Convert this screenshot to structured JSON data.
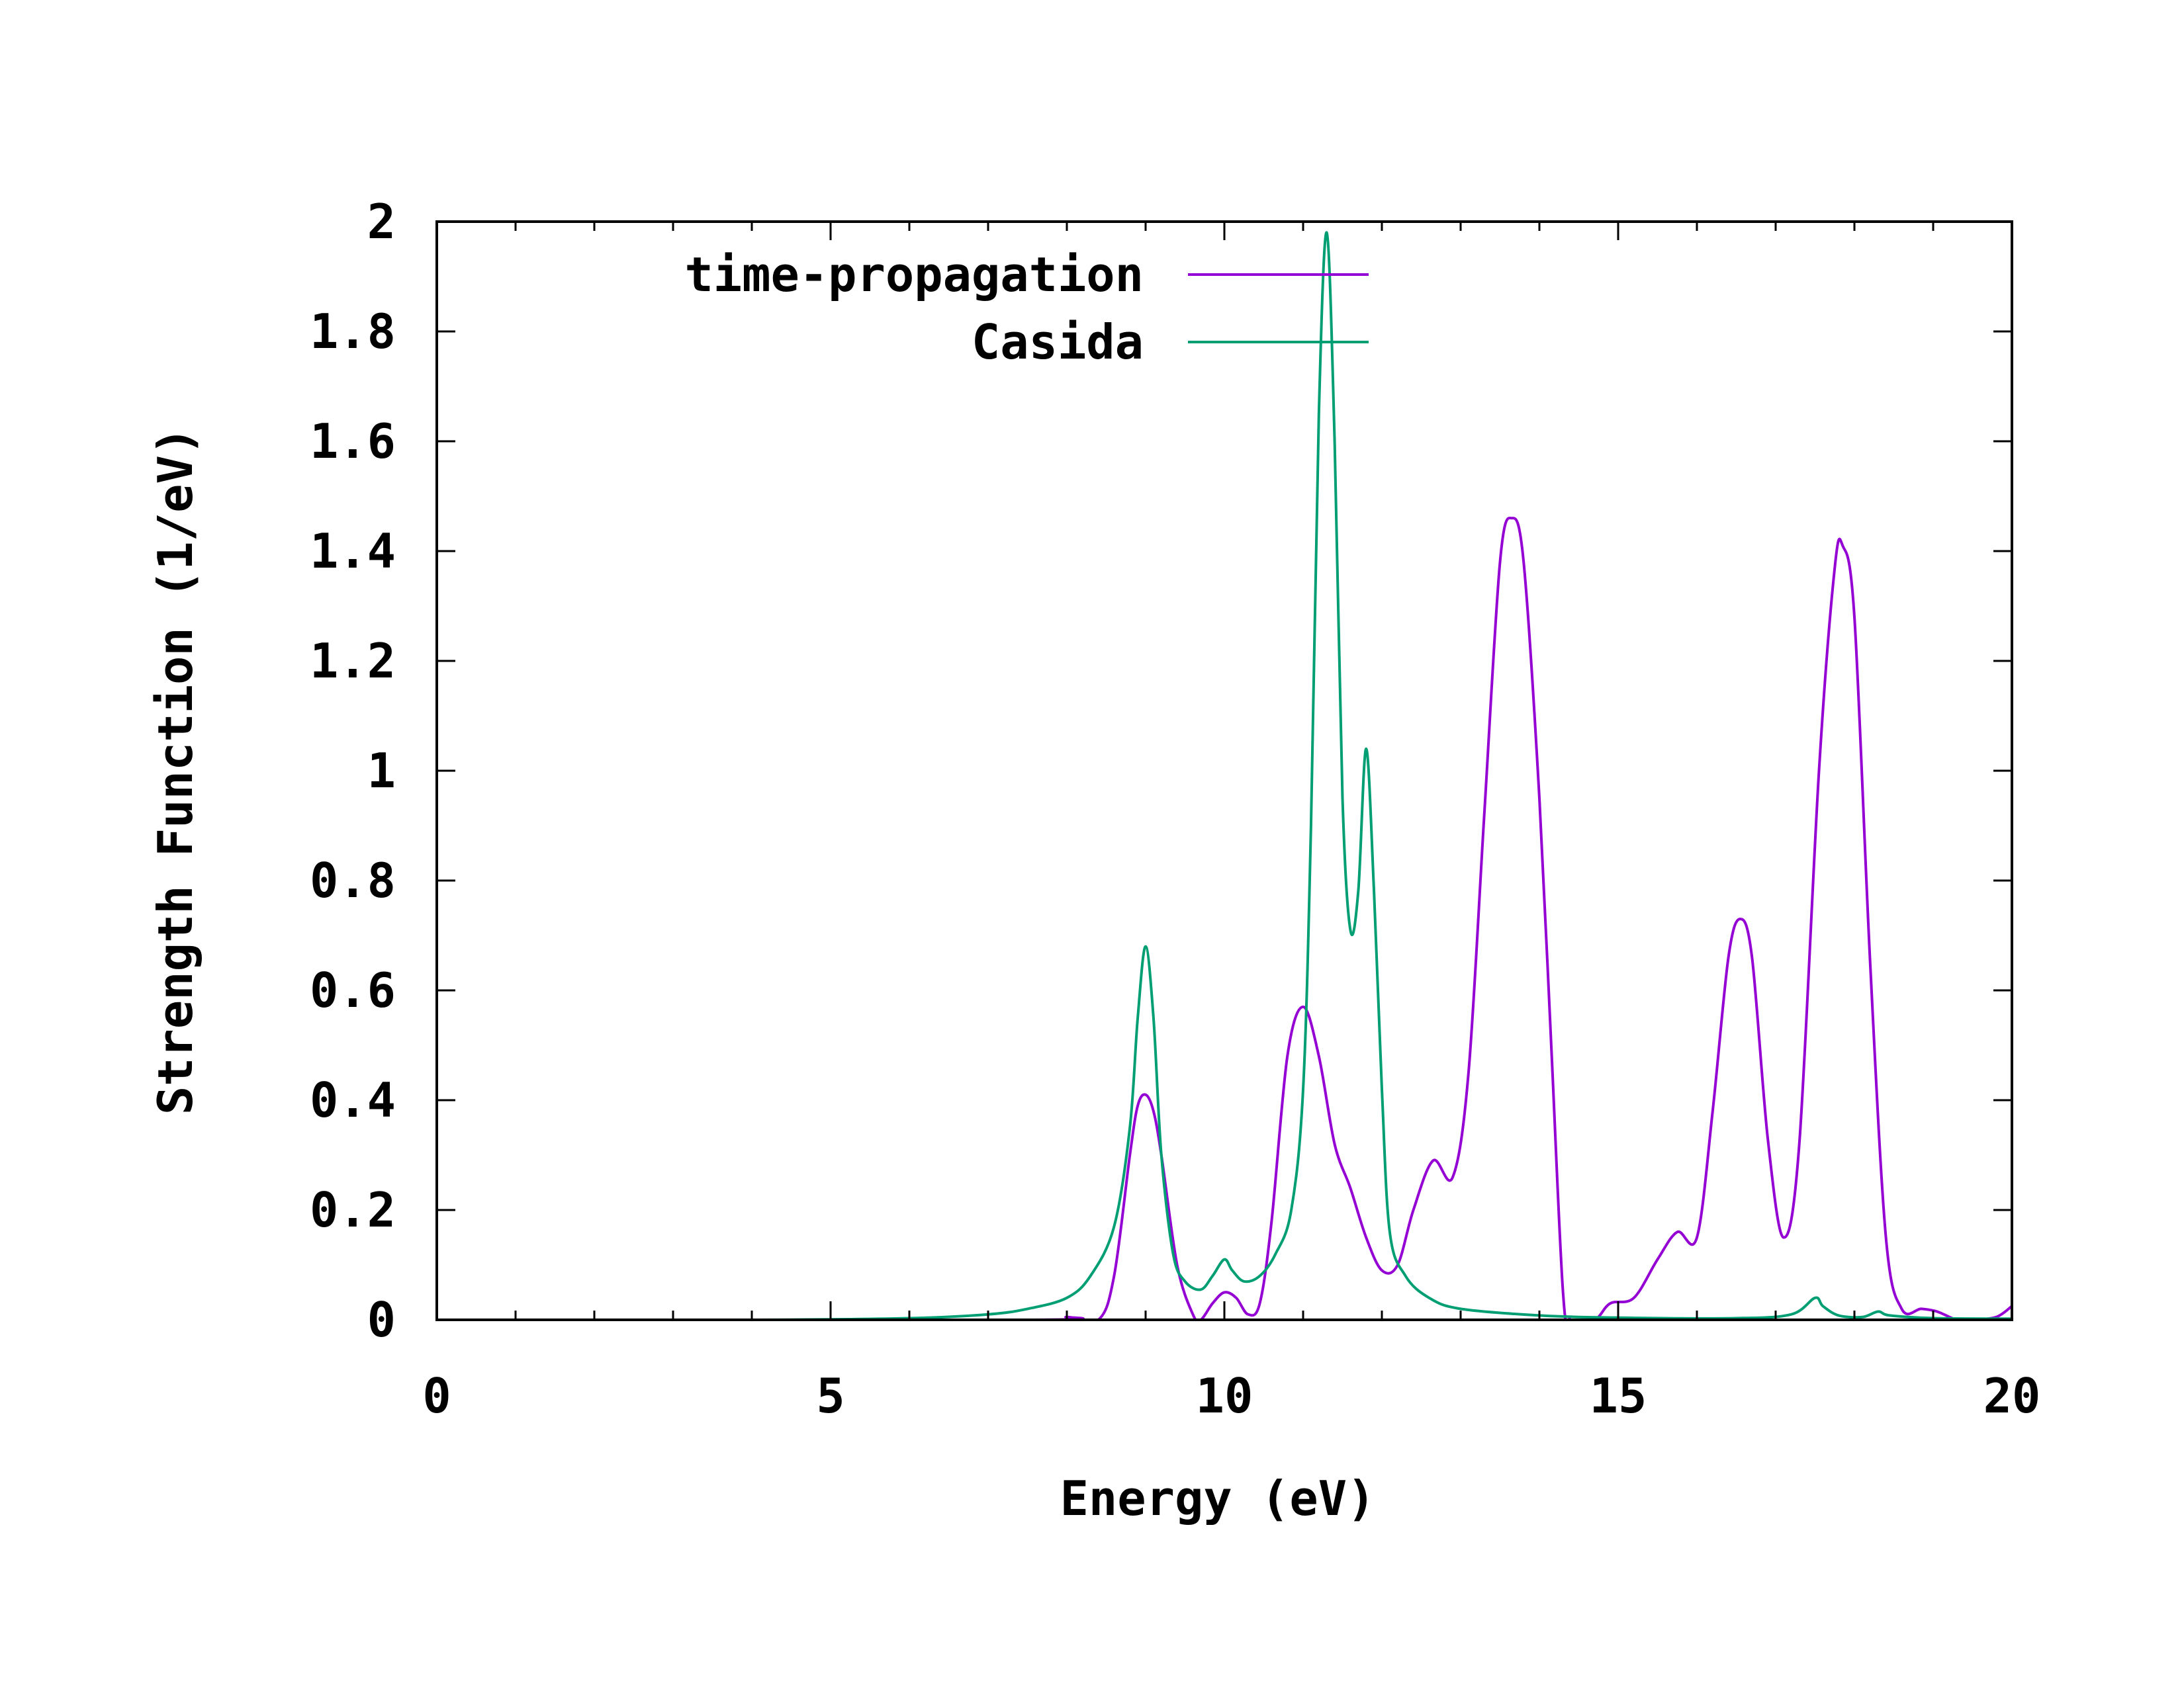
{
  "chart_data": {
    "type": "line",
    "title": "",
    "xlabel": "Energy (eV)",
    "ylabel": "Strength Function (1/eV)",
    "xlim": [
      0,
      20
    ],
    "ylim": [
      0,
      2
    ],
    "xticks": [
      0,
      5,
      10,
      15,
      20
    ],
    "xtick_labels": [
      "0",
      "5",
      "10",
      "15",
      "20"
    ],
    "yticks": [
      0,
      0.2,
      0.4,
      0.6,
      0.8,
      1,
      1.2,
      1.4,
      1.6,
      1.8,
      2
    ],
    "ytick_labels": [
      "0",
      "0.2",
      "0.4",
      "0.6",
      "0.8",
      "1",
      "1.2",
      "1.4",
      "1.6",
      "1.8",
      "2"
    ],
    "x_minor_step": 1,
    "grid": false,
    "legend_position": "top-left",
    "series": [
      {
        "name": "time-propagation",
        "color": "#9400d3",
        "points": [
          [
            0,
            0
          ],
          [
            7.5,
            0
          ],
          [
            8.0,
            0.005
          ],
          [
            8.4,
            0
          ],
          [
            8.6,
            0.08
          ],
          [
            8.8,
            0.3
          ],
          [
            8.9,
            0.39
          ],
          [
            9.0,
            0.41
          ],
          [
            9.1,
            0.38
          ],
          [
            9.2,
            0.3
          ],
          [
            9.4,
            0.1
          ],
          [
            9.6,
            0.01
          ],
          [
            9.7,
            0.0
          ],
          [
            9.85,
            0.03
          ],
          [
            10.0,
            0.05
          ],
          [
            10.15,
            0.04
          ],
          [
            10.3,
            0.01
          ],
          [
            10.45,
            0.03
          ],
          [
            10.6,
            0.18
          ],
          [
            10.8,
            0.48
          ],
          [
            11.0,
            0.57
          ],
          [
            11.2,
            0.48
          ],
          [
            11.4,
            0.32
          ],
          [
            11.6,
            0.24
          ],
          [
            11.8,
            0.15
          ],
          [
            12.0,
            0.09
          ],
          [
            12.2,
            0.1
          ],
          [
            12.4,
            0.2
          ],
          [
            12.65,
            0.29
          ],
          [
            12.9,
            0.26
          ],
          [
            13.1,
            0.45
          ],
          [
            13.3,
            0.92
          ],
          [
            13.5,
            1.38
          ],
          [
            13.65,
            1.46
          ],
          [
            13.8,
            1.38
          ],
          [
            14.0,
            0.95
          ],
          [
            14.15,
            0.5
          ],
          [
            14.3,
            0.05
          ],
          [
            14.4,
            0.0
          ],
          [
            14.7,
            0.0
          ],
          [
            14.9,
            0.03
          ],
          [
            15.2,
            0.04
          ],
          [
            15.5,
            0.11
          ],
          [
            15.75,
            0.16
          ],
          [
            16.0,
            0.15
          ],
          [
            16.2,
            0.38
          ],
          [
            16.4,
            0.66
          ],
          [
            16.55,
            0.73
          ],
          [
            16.7,
            0.66
          ],
          [
            16.9,
            0.33
          ],
          [
            17.1,
            0.15
          ],
          [
            17.3,
            0.32
          ],
          [
            17.55,
            1.0
          ],
          [
            17.75,
            1.37
          ],
          [
            17.85,
            1.41
          ],
          [
            18.0,
            1.28
          ],
          [
            18.2,
            0.65
          ],
          [
            18.4,
            0.15
          ],
          [
            18.6,
            0.02
          ],
          [
            18.85,
            0.02
          ],
          [
            19.05,
            0.015
          ],
          [
            19.3,
            0.0
          ],
          [
            19.5,
            0.0
          ],
          [
            19.8,
            0.005
          ],
          [
            20.0,
            0.025
          ]
        ]
      },
      {
        "name": "Casida",
        "color": "#009e73",
        "points": [
          [
            0,
            0
          ],
          [
            4,
            0
          ],
          [
            6,
            0.003
          ],
          [
            7,
            0.01
          ],
          [
            7.5,
            0.02
          ],
          [
            8.0,
            0.04
          ],
          [
            8.3,
            0.08
          ],
          [
            8.6,
            0.17
          ],
          [
            8.8,
            0.35
          ],
          [
            8.9,
            0.55
          ],
          [
            9.0,
            0.68
          ],
          [
            9.1,
            0.55
          ],
          [
            9.2,
            0.3
          ],
          [
            9.35,
            0.12
          ],
          [
            9.5,
            0.07
          ],
          [
            9.7,
            0.055
          ],
          [
            9.85,
            0.08
          ],
          [
            10.0,
            0.11
          ],
          [
            10.1,
            0.09
          ],
          [
            10.25,
            0.07
          ],
          [
            10.45,
            0.08
          ],
          [
            10.65,
            0.12
          ],
          [
            10.85,
            0.2
          ],
          [
            11.0,
            0.42
          ],
          [
            11.1,
            0.9
          ],
          [
            11.2,
            1.65
          ],
          [
            11.3,
            1.98
          ],
          [
            11.4,
            1.6
          ],
          [
            11.5,
            0.95
          ],
          [
            11.6,
            0.71
          ],
          [
            11.7,
            0.78
          ],
          [
            11.8,
            1.04
          ],
          [
            11.9,
            0.78
          ],
          [
            12.0,
            0.42
          ],
          [
            12.1,
            0.16
          ],
          [
            12.3,
            0.08
          ],
          [
            12.6,
            0.04
          ],
          [
            13.0,
            0.02
          ],
          [
            14.0,
            0.008
          ],
          [
            15.0,
            0.004
          ],
          [
            16.5,
            0.003
          ],
          [
            17.2,
            0.01
          ],
          [
            17.5,
            0.04
          ],
          [
            17.6,
            0.025
          ],
          [
            17.8,
            0.008
          ],
          [
            18.1,
            0.005
          ],
          [
            18.3,
            0.015
          ],
          [
            18.45,
            0.008
          ],
          [
            19.0,
            0.003
          ],
          [
            20.0,
            0.002
          ]
        ]
      }
    ]
  }
}
